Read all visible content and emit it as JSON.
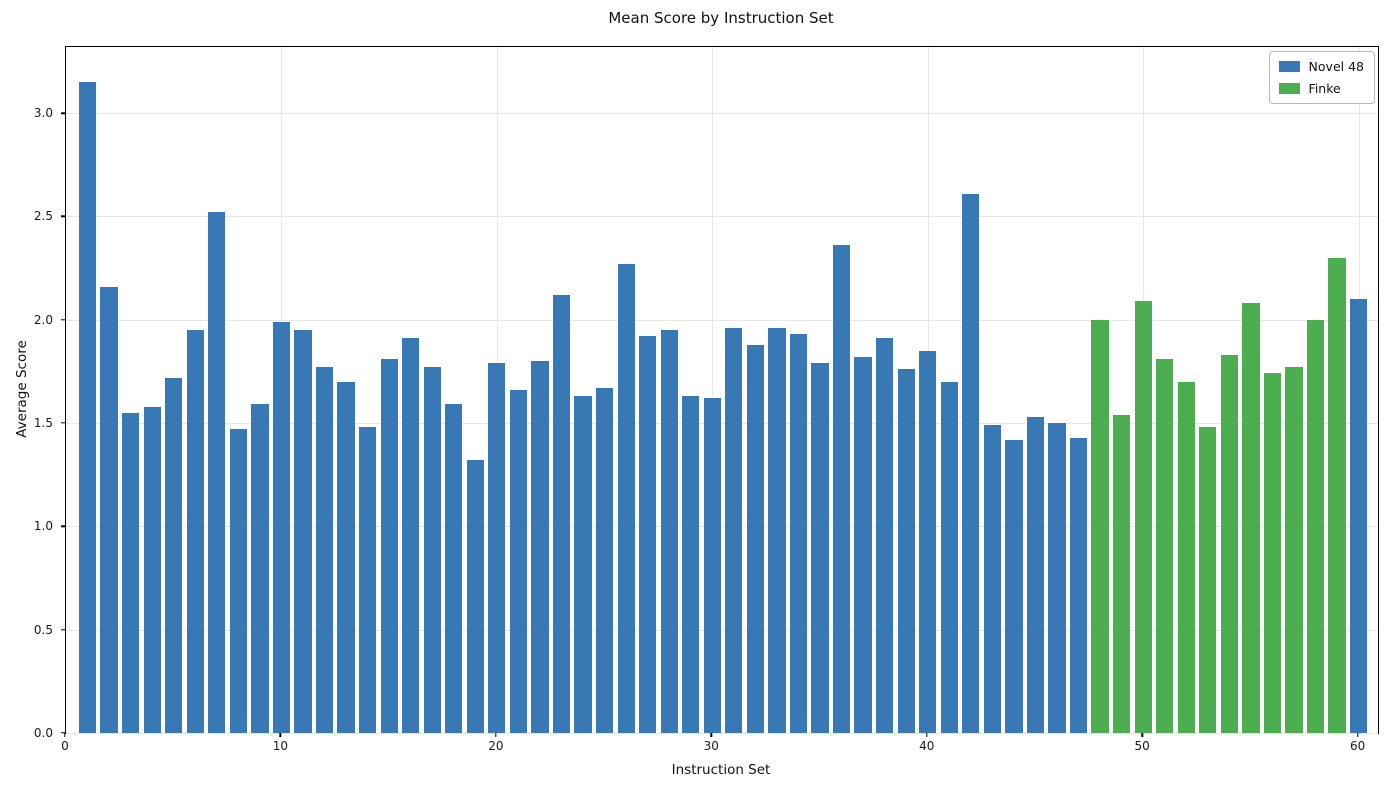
{
  "chart_data": {
    "type": "bar",
    "title": "Mean Score by Instruction Set",
    "xlabel": "Instruction Set",
    "ylabel": "Average Score",
    "xlim": [
      0,
      60.9
    ],
    "ylim": [
      0,
      3.32
    ],
    "xticks": [
      0,
      10,
      20,
      30,
      40,
      50,
      60
    ],
    "yticks": [
      0.0,
      0.5,
      1.0,
      1.5,
      2.0,
      2.5,
      3.0
    ],
    "grid": true,
    "legend_position": "upper right",
    "series": [
      {
        "name": "Novel 48",
        "color": "#3878b4"
      },
      {
        "name": "Finke",
        "color": "#4dad51"
      }
    ],
    "bars": [
      {
        "x": 1,
        "value": 3.15,
        "series": "Novel 48"
      },
      {
        "x": 2,
        "value": 2.16,
        "series": "Novel 48"
      },
      {
        "x": 3,
        "value": 1.55,
        "series": "Novel 48"
      },
      {
        "x": 4,
        "value": 1.58,
        "series": "Novel 48"
      },
      {
        "x": 5,
        "value": 1.72,
        "series": "Novel 48"
      },
      {
        "x": 6,
        "value": 1.95,
        "series": "Novel 48"
      },
      {
        "x": 7,
        "value": 2.52,
        "series": "Novel 48"
      },
      {
        "x": 8,
        "value": 1.47,
        "series": "Novel 48"
      },
      {
        "x": 9,
        "value": 1.59,
        "series": "Novel 48"
      },
      {
        "x": 10,
        "value": 1.99,
        "series": "Novel 48"
      },
      {
        "x": 11,
        "value": 1.95,
        "series": "Novel 48"
      },
      {
        "x": 12,
        "value": 1.77,
        "series": "Novel 48"
      },
      {
        "x": 13,
        "value": 1.7,
        "series": "Novel 48"
      },
      {
        "x": 14,
        "value": 1.48,
        "series": "Novel 48"
      },
      {
        "x": 15,
        "value": 1.81,
        "series": "Novel 48"
      },
      {
        "x": 16,
        "value": 1.91,
        "series": "Novel 48"
      },
      {
        "x": 17,
        "value": 1.77,
        "series": "Novel 48"
      },
      {
        "x": 18,
        "value": 1.59,
        "series": "Novel 48"
      },
      {
        "x": 19,
        "value": 1.32,
        "series": "Novel 48"
      },
      {
        "x": 20,
        "value": 1.79,
        "series": "Novel 48"
      },
      {
        "x": 21,
        "value": 1.66,
        "series": "Novel 48"
      },
      {
        "x": 22,
        "value": 1.8,
        "series": "Novel 48"
      },
      {
        "x": 23,
        "value": 2.12,
        "series": "Novel 48"
      },
      {
        "x": 24,
        "value": 1.63,
        "series": "Novel 48"
      },
      {
        "x": 25,
        "value": 1.67,
        "series": "Novel 48"
      },
      {
        "x": 26,
        "value": 2.27,
        "series": "Novel 48"
      },
      {
        "x": 27,
        "value": 1.92,
        "series": "Novel 48"
      },
      {
        "x": 28,
        "value": 1.95,
        "series": "Novel 48"
      },
      {
        "x": 29,
        "value": 1.63,
        "series": "Novel 48"
      },
      {
        "x": 30,
        "value": 1.62,
        "series": "Novel 48"
      },
      {
        "x": 31,
        "value": 1.96,
        "series": "Novel 48"
      },
      {
        "x": 32,
        "value": 1.88,
        "series": "Novel 48"
      },
      {
        "x": 33,
        "value": 1.96,
        "series": "Novel 48"
      },
      {
        "x": 34,
        "value": 1.93,
        "series": "Novel 48"
      },
      {
        "x": 35,
        "value": 1.79,
        "series": "Novel 48"
      },
      {
        "x": 36,
        "value": 2.36,
        "series": "Novel 48"
      },
      {
        "x": 37,
        "value": 1.82,
        "series": "Novel 48"
      },
      {
        "x": 38,
        "value": 1.91,
        "series": "Novel 48"
      },
      {
        "x": 39,
        "value": 1.76,
        "series": "Novel 48"
      },
      {
        "x": 40,
        "value": 1.85,
        "series": "Novel 48"
      },
      {
        "x": 41,
        "value": 1.7,
        "series": "Novel 48"
      },
      {
        "x": 42,
        "value": 2.61,
        "series": "Novel 48"
      },
      {
        "x": 43,
        "value": 1.49,
        "series": "Novel 48"
      },
      {
        "x": 44,
        "value": 1.42,
        "series": "Novel 48"
      },
      {
        "x": 45,
        "value": 1.53,
        "series": "Novel 48"
      },
      {
        "x": 46,
        "value": 1.5,
        "series": "Novel 48"
      },
      {
        "x": 47,
        "value": 1.43,
        "series": "Novel 48"
      },
      {
        "x": 48,
        "value": 2.0,
        "series": "Finke"
      },
      {
        "x": 49,
        "value": 1.54,
        "series": "Finke"
      },
      {
        "x": 50,
        "value": 2.09,
        "series": "Finke"
      },
      {
        "x": 51,
        "value": 1.81,
        "series": "Finke"
      },
      {
        "x": 52,
        "value": 1.7,
        "series": "Finke"
      },
      {
        "x": 53,
        "value": 1.48,
        "series": "Finke"
      },
      {
        "x": 54,
        "value": 1.83,
        "series": "Finke"
      },
      {
        "x": 55,
        "value": 2.08,
        "series": "Finke"
      },
      {
        "x": 56,
        "value": 1.74,
        "series": "Finke"
      },
      {
        "x": 57,
        "value": 1.77,
        "series": "Finke"
      },
      {
        "x": 58,
        "value": 2.0,
        "series": "Finke"
      },
      {
        "x": 59,
        "value": 2.3,
        "series": "Finke"
      },
      {
        "x": 60,
        "value": 2.1,
        "series": "Novel 48"
      }
    ]
  },
  "legend": {
    "entries": [
      {
        "label": "Novel 48",
        "color": "#3878b4"
      },
      {
        "label": "Finke",
        "color": "#4dad51"
      }
    ]
  }
}
